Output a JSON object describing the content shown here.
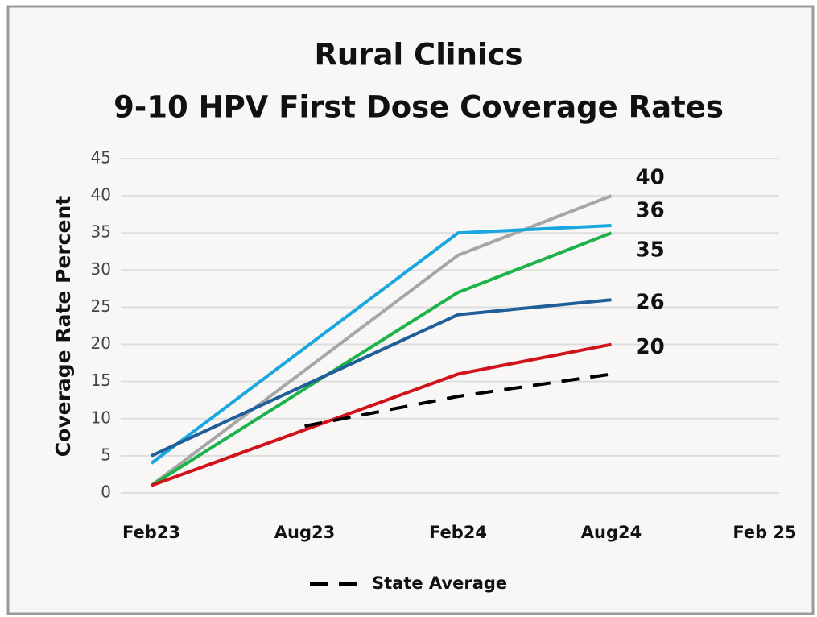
{
  "chart_data": {
    "type": "line",
    "title": "Rural Clinics",
    "subtitle": "9-10 HPV First Dose Coverage Rates",
    "y_label": "Coverage Rate Percent",
    "categories": [
      "Feb23",
      "Aug23",
      "Feb24",
      "Aug24",
      "Feb 25"
    ],
    "ylim": [
      0,
      45
    ],
    "yticks": [
      0,
      5,
      10,
      15,
      20,
      25,
      30,
      35,
      40,
      45
    ],
    "grid": true,
    "legend": "bottom",
    "series": [
      {
        "color": "#a6a6a6",
        "x": [
          "Feb23",
          "Feb24",
          "Aug24"
        ],
        "values": [
          1,
          32,
          40
        ]
      },
      {
        "color": "#1aa7e0",
        "x": [
          "Feb23",
          "Feb24",
          "Aug24"
        ],
        "values": [
          4,
          35,
          36
        ]
      },
      {
        "color": "#1db34a",
        "x": [
          "Feb23",
          "Feb24",
          "Aug24"
        ],
        "values": [
          1,
          27,
          35
        ]
      },
      {
        "color": "#1f5f99",
        "x": [
          "Feb23",
          "Feb24",
          "Aug24"
        ],
        "values": [
          5,
          24,
          26
        ]
      },
      {
        "color": "#d0121b",
        "x": [
          "Feb23",
          "Feb24",
          "Aug24"
        ],
        "values": [
          1,
          16,
          20
        ]
      },
      {
        "name": "State Average",
        "color": "#000000",
        "dashed": true,
        "x": [
          "Aug23",
          "Feb24",
          "Aug24"
        ],
        "values": [
          9,
          13,
          16
        ]
      }
    ]
  }
}
